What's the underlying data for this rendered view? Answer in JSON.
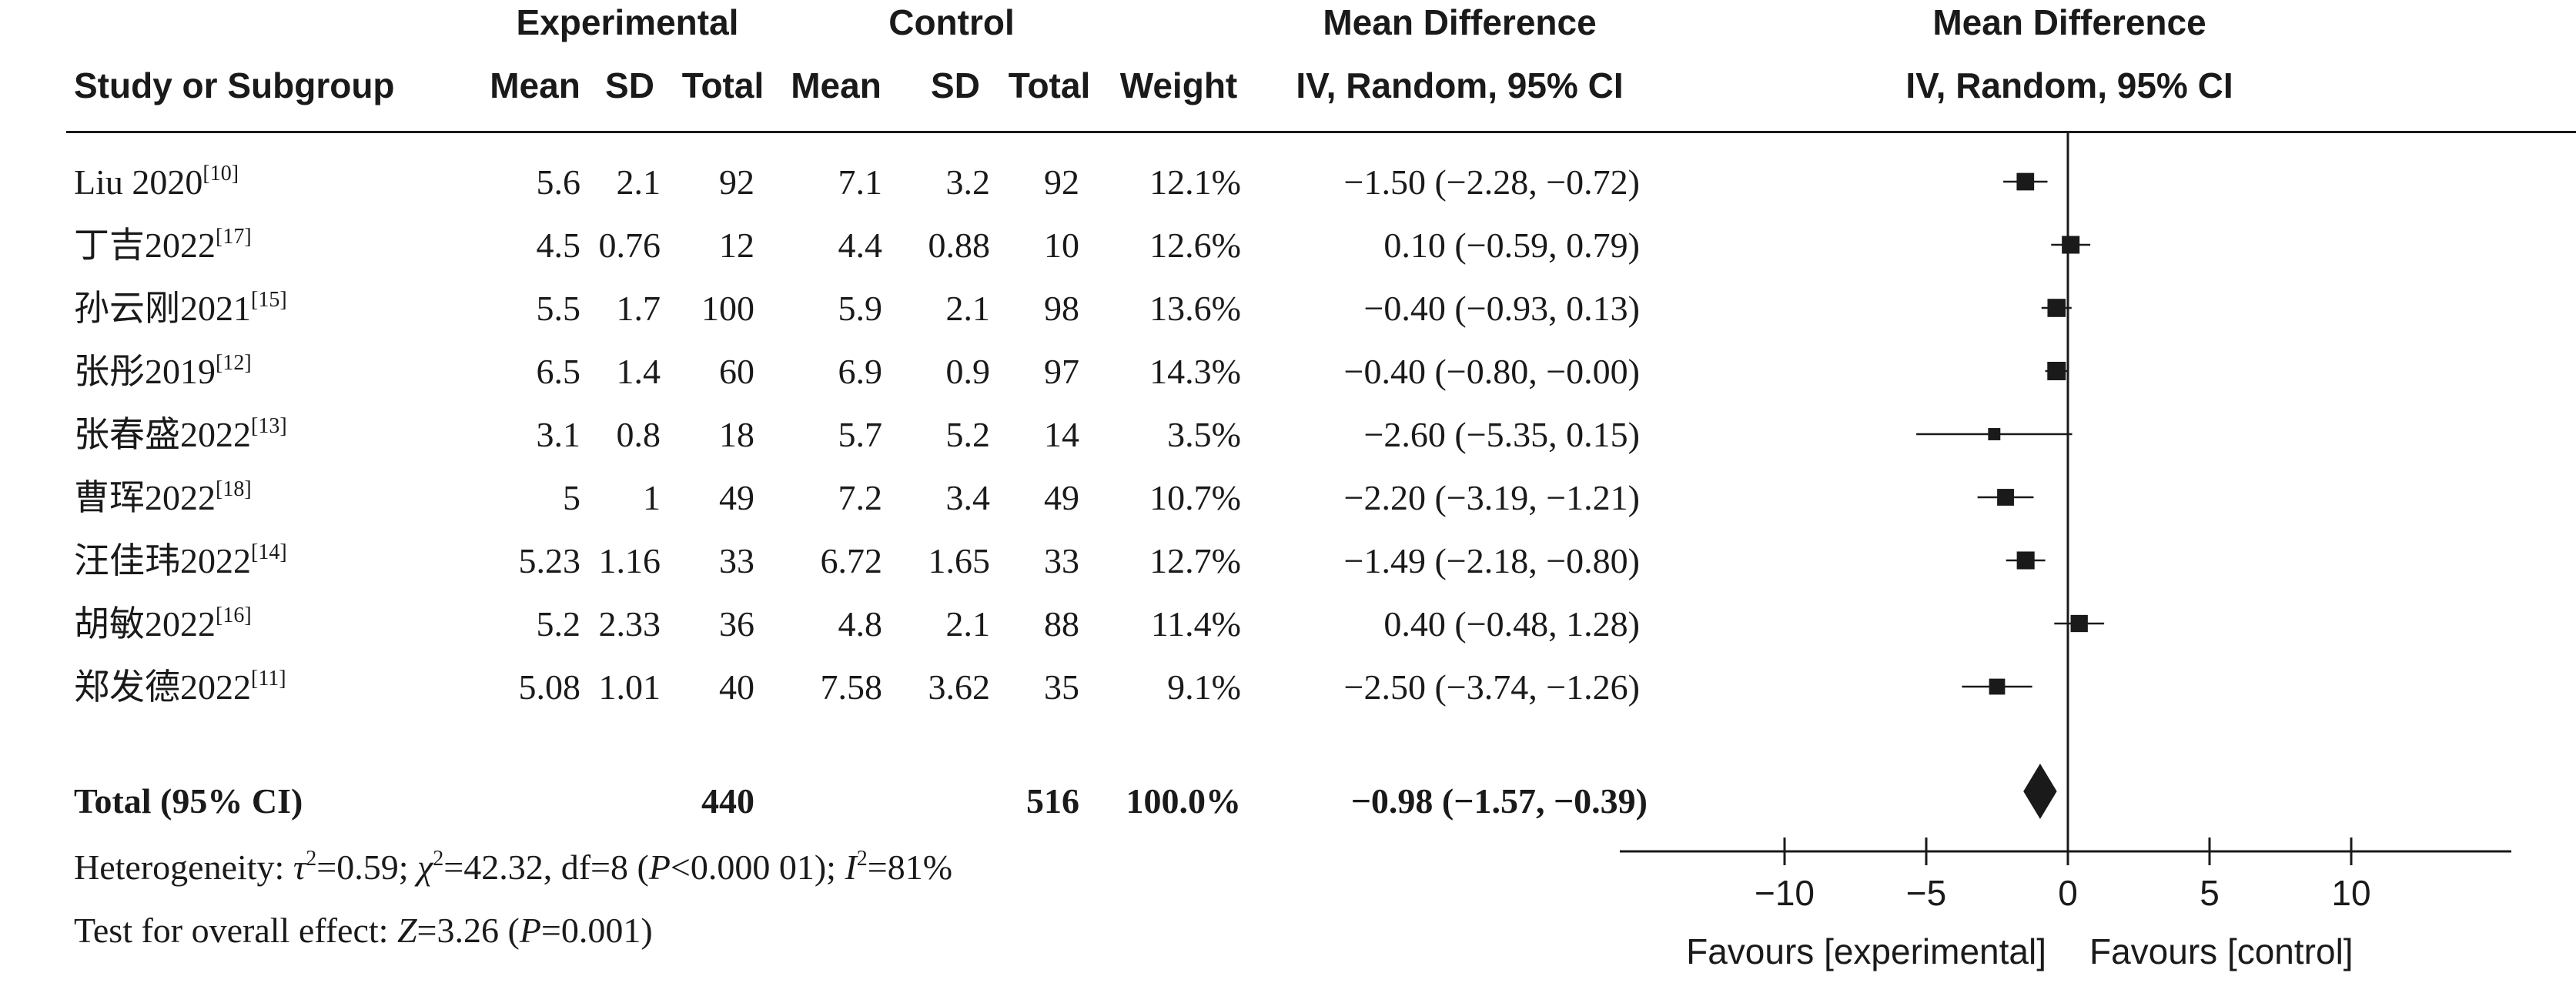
{
  "headers": {
    "study": "Study or Subgroup",
    "experimental": "Experimental",
    "control": "Control",
    "mean": "Mean",
    "sd": "SD",
    "total": "Total",
    "weight": "Weight",
    "md": "Mean Difference",
    "md_method": "IV, Random, 95% CI",
    "plot_md": "Mean Difference",
    "plot_method": "IV, Random, 95% CI"
  },
  "studies": [
    {
      "name": "Liu 2020",
      "ref": "[10]",
      "e_mean": "5.6",
      "e_sd": "2.1",
      "e_total": "92",
      "c_mean": "7.1",
      "c_sd": "3.2",
      "c_total": "92",
      "weight": "12.1%",
      "ci_text": "−1.50 (−2.28, −0.72)"
    },
    {
      "name": "丁吉2022",
      "ref": "[17]",
      "e_mean": "4.5",
      "e_sd": "0.76",
      "e_total": "12",
      "c_mean": "4.4",
      "c_sd": "0.88",
      "c_total": "10",
      "weight": "12.6%",
      "ci_text": "0.10 (−0.59, 0.79)"
    },
    {
      "name": "孙云刚2021",
      "ref": "[15]",
      "e_mean": "5.5",
      "e_sd": "1.7",
      "e_total": "100",
      "c_mean": "5.9",
      "c_sd": "2.1",
      "c_total": "98",
      "weight": "13.6%",
      "ci_text": "−0.40 (−0.93, 0.13)"
    },
    {
      "name": "张彤2019",
      "ref": "[12]",
      "e_mean": "6.5",
      "e_sd": "1.4",
      "e_total": "60",
      "c_mean": "6.9",
      "c_sd": "0.9",
      "c_total": "97",
      "weight": "14.3%",
      "ci_text": "−0.40 (−0.80, −0.00)"
    },
    {
      "name": "张春盛2022",
      "ref": "[13]",
      "e_mean": "3.1",
      "e_sd": "0.8",
      "e_total": "18",
      "c_mean": "5.7",
      "c_sd": "5.2",
      "c_total": "14",
      "weight": "3.5%",
      "ci_text": "−2.60 (−5.35, 0.15)"
    },
    {
      "name": "曹珲2022",
      "ref": "[18]",
      "e_mean": "5",
      "e_sd": "1",
      "e_total": "49",
      "c_mean": "7.2",
      "c_sd": "3.4",
      "c_total": "49",
      "weight": "10.7%",
      "ci_text": "−2.20 (−3.19, −1.21)"
    },
    {
      "name": "汪佳玮2022",
      "ref": "[14]",
      "e_mean": "5.23",
      "e_sd": "1.16",
      "e_total": "33",
      "c_mean": "6.72",
      "c_sd": "1.65",
      "c_total": "33",
      "weight": "12.7%",
      "ci_text": "−1.49 (−2.18, −0.80)"
    },
    {
      "name": "胡敏2022",
      "ref": "[16]",
      "e_mean": "5.2",
      "e_sd": "2.33",
      "e_total": "36",
      "c_mean": "4.8",
      "c_sd": "2.1",
      "c_total": "88",
      "weight": "11.4%",
      "ci_text": "0.40 (−0.48, 1.28)"
    },
    {
      "name": "郑发德2022",
      "ref": "[11]",
      "e_mean": "5.08",
      "e_sd": "1.01",
      "e_total": "40",
      "c_mean": "7.58",
      "c_sd": "3.62",
      "c_total": "35",
      "weight": "9.1%",
      "ci_text": "−2.50 (−3.74, −1.26)"
    }
  ],
  "total": {
    "label": "Total (95% CI)",
    "e_total": "440",
    "c_total": "516",
    "weight": "100.0%",
    "ci_text": "−0.98 (−1.57, −0.39)"
  },
  "footer": {
    "het_a": "Heterogeneity: ",
    "tau": "τ",
    "het_b": "=0.59; ",
    "chi": "χ",
    "het_c": "=42.32, df=8 (",
    "p1": "P",
    "het_d": "<0.000 01); ",
    "i": "I",
    "het_e": "=81%",
    "sq": "2",
    "test_a": "Test for overall effect: ",
    "z": "Z",
    "test_b": "=3.26 (",
    "p2": "P",
    "test_c": "=0.001)"
  },
  "chart_data": {
    "type": "forest",
    "xlim": [
      -15,
      15
    ],
    "x_ticks": [
      -10,
      -5,
      0,
      5,
      10
    ],
    "tick_labels": [
      "−10",
      "−5",
      "0",
      "5",
      "10"
    ],
    "favours_left": "Favours [experimental]",
    "favours_right": "Favours [control]",
    "series": [
      {
        "md": -1.5,
        "lo": -2.28,
        "hi": -0.72,
        "weight": 12.1
      },
      {
        "md": 0.1,
        "lo": -0.59,
        "hi": 0.79,
        "weight": 12.6
      },
      {
        "md": -0.4,
        "lo": -0.93,
        "hi": 0.13,
        "weight": 13.6
      },
      {
        "md": -0.4,
        "lo": -0.8,
        "hi": -0.0,
        "weight": 14.3
      },
      {
        "md": -2.6,
        "lo": -5.35,
        "hi": 0.15,
        "weight": 3.5
      },
      {
        "md": -2.2,
        "lo": -3.19,
        "hi": -1.21,
        "weight": 10.7
      },
      {
        "md": -1.49,
        "lo": -2.18,
        "hi": -0.8,
        "weight": 12.7
      },
      {
        "md": 0.4,
        "lo": -0.48,
        "hi": 1.28,
        "weight": 11.4
      },
      {
        "md": -2.5,
        "lo": -3.74,
        "hi": -1.26,
        "weight": 9.1
      }
    ],
    "pooled": {
      "md": -0.98,
      "lo": -1.57,
      "hi": -0.39
    }
  }
}
